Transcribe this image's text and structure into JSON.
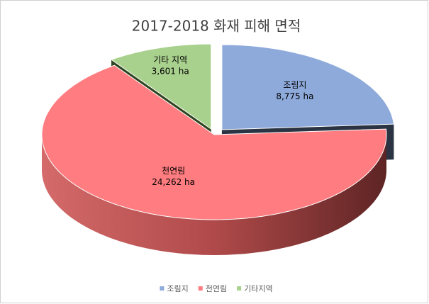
{
  "chart_data": {
    "type": "pie",
    "title": "2017-2018 화재 피해 면적",
    "categories": [
      "조림지",
      "천연림",
      "기타지역"
    ],
    "slice_labels": [
      "조림지",
      "천연림",
      "기타 지역"
    ],
    "values": [
      8775,
      24262,
      3601
    ],
    "value_labels": [
      "8,775 ha",
      "24,262 ha",
      "3,601 ha"
    ],
    "colors": [
      "#8eaadb",
      "#ff7c80",
      "#a9d18e"
    ],
    "legend": "bottom"
  }
}
